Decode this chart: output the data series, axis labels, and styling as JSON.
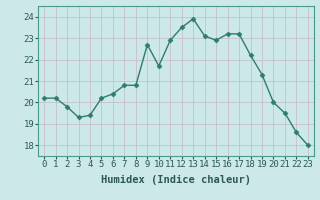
{
  "x": [
    0,
    1,
    2,
    3,
    4,
    5,
    6,
    7,
    8,
    9,
    10,
    11,
    12,
    13,
    14,
    15,
    16,
    17,
    18,
    19,
    20,
    21,
    22,
    23
  ],
  "y": [
    20.2,
    20.2,
    19.8,
    19.3,
    19.4,
    20.2,
    20.4,
    20.8,
    20.8,
    22.7,
    21.7,
    22.9,
    23.5,
    23.9,
    23.1,
    22.9,
    23.2,
    23.2,
    22.2,
    21.3,
    20.0,
    19.5,
    18.6,
    18.0
  ],
  "line_color": "#2d7d6e",
  "marker": "D",
  "marker_size": 2.5,
  "bg_color": "#cce8e8",
  "grid_color_major": "#b8d8d8",
  "grid_color_minor": "#d4e8e8",
  "xlabel": "Humidex (Indice chaleur)",
  "ylim": [
    17.5,
    24.5
  ],
  "xlim": [
    -0.5,
    23.5
  ],
  "yticks": [
    18,
    19,
    20,
    21,
    22,
    23,
    24
  ],
  "xticks": [
    0,
    1,
    2,
    3,
    4,
    5,
    6,
    7,
    8,
    9,
    10,
    11,
    12,
    13,
    14,
    15,
    16,
    17,
    18,
    19,
    20,
    21,
    22,
    23
  ],
  "tick_fontsize": 6.5,
  "label_fontsize": 7.5,
  "spine_color": "#4a9a8a",
  "tick_color": "#2d5a50"
}
